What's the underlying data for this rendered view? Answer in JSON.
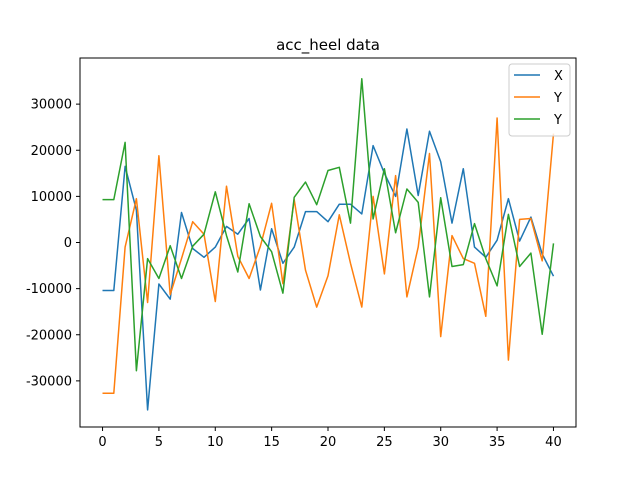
{
  "chart_data": {
    "type": "line",
    "title": "acc_heel data",
    "xlabel": "",
    "ylabel": "",
    "xlim": [
      -2,
      42
    ],
    "ylim": [
      -40000,
      40000
    ],
    "x_ticks": [
      0,
      5,
      10,
      15,
      20,
      25,
      30,
      35,
      40
    ],
    "y_ticks": [
      -30000,
      -20000,
      -10000,
      0,
      10000,
      20000,
      30000
    ],
    "grid": false,
    "legend_position": "top-right",
    "x": [
      0,
      1,
      2,
      3,
      4,
      5,
      6,
      7,
      8,
      9,
      10,
      11,
      12,
      13,
      14,
      15,
      16,
      17,
      18,
      19,
      20,
      21,
      22,
      23,
      24,
      25,
      26,
      27,
      28,
      29,
      30,
      31,
      32,
      33,
      34,
      35,
      36,
      37,
      38,
      39,
      40
    ],
    "series": [
      {
        "name": "X",
        "color": "#1f77b4",
        "values": [
          -10400,
          -10400,
          16500,
          7000,
          -36300,
          -9000,
          -12300,
          6500,
          -1300,
          -3200,
          -1000,
          3500,
          1800,
          5200,
          -10300,
          3000,
          -4500,
          -1000,
          6700,
          6700,
          4500,
          8300,
          8300,
          6200,
          21000,
          15000,
          10000,
          24600,
          10200,
          24100,
          17500,
          4200,
          16000,
          -1000,
          -3200,
          500,
          9500,
          300,
          5500,
          -2500,
          -7300
        ]
      },
      {
        "name": "Y",
        "color": "#ff7f0e",
        "values": [
          -32700,
          -32700,
          -1000,
          9500,
          -13000,
          18800,
          -11300,
          -3500,
          4500,
          1800,
          -12800,
          12200,
          -3000,
          -7800,
          -800,
          8500,
          -8900,
          9300,
          -6000,
          -14000,
          -7200,
          6000,
          -4500,
          -14000,
          10000,
          -6800,
          14500,
          -11800,
          -1000,
          19300,
          -20400,
          1500,
          -3500,
          -4500,
          -16000,
          27000,
          -25500,
          5000,
          5200,
          -4000,
          23600
        ]
      },
      {
        "name": "Y",
        "color": "#2ca02c",
        "values": [
          9300,
          9300,
          21700,
          -27800,
          -3500,
          -7800,
          -700,
          -7800,
          -800,
          1800,
          11000,
          1500,
          -6400,
          8400,
          1300,
          -2000,
          -11000,
          9800,
          13100,
          8200,
          15600,
          16300,
          4200,
          35500,
          5100,
          16000,
          2100,
          11600,
          8700,
          -11800,
          9700,
          -5200,
          -4800,
          4100,
          -3500,
          -9400,
          6100,
          -5200,
          -2300,
          -19900,
          -200
        ]
      }
    ]
  }
}
